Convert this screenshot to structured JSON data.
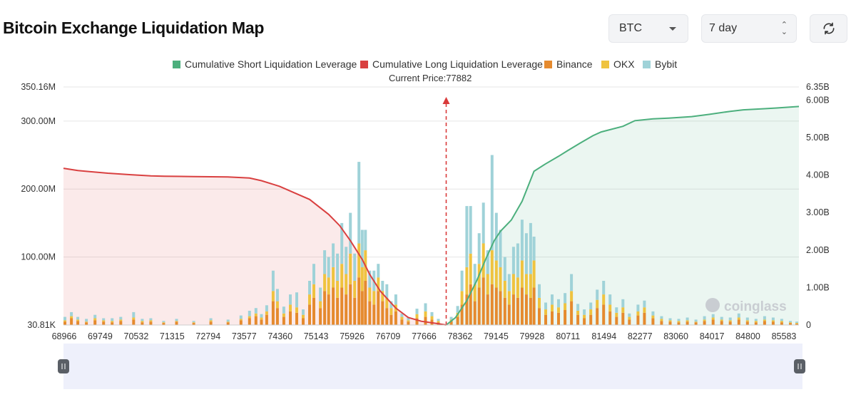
{
  "header": {
    "title": "Bitcoin Exchange Liquidation Map"
  },
  "controls": {
    "symbol": {
      "value": "BTC"
    },
    "range": {
      "value": "7 day"
    },
    "refresh_icon": "refresh-icon"
  },
  "legend": [
    {
      "label": "Cumulative Short Liquidation Leverage",
      "color": "#4caf7d"
    },
    {
      "label": "Cumulative Long Liquidation Leverage",
      "color": "#d94040"
    },
    {
      "label": "Binance",
      "color": "#e58a2e"
    },
    {
      "label": "OKX",
      "color": "#efc33f"
    },
    {
      "label": "Bybit",
      "color": "#9fd2d8"
    }
  ],
  "current_price_label": "Current Price:77882",
  "watermark": "coinglass",
  "chart_data": {
    "type": "bar",
    "x_tick_labels": [
      "68966",
      "69749",
      "70532",
      "71315",
      "72794",
      "73577",
      "74360",
      "75143",
      "75926",
      "76709",
      "77666",
      "78362",
      "79145",
      "79928",
      "80711",
      "81494",
      "82277",
      "83060",
      "84017",
      "84800",
      "85583"
    ],
    "x_range": [
      68966,
      86100
    ],
    "current_price": 77882,
    "left_axis_labels": [
      "350.16M",
      "300.00M",
      "200.00M",
      "100.00M",
      "30.81K"
    ],
    "right_axis_labels": [
      "6.35B",
      "6.00B",
      "5.00B",
      "4.00B",
      "3.00B",
      "2.00B",
      "1.00B",
      "0"
    ],
    "ylim_left": [
      0,
      350160000
    ],
    "ylim_right": [
      0,
      6350000000
    ],
    "series_lines": [
      {
        "name": "Cumulative Long Liquidation Leverage",
        "color": "#d94040",
        "points": [
          [
            68966,
            4180000000.0
          ],
          [
            69300,
            4120000000.0
          ],
          [
            70000,
            4050000000.0
          ],
          [
            70532,
            4010000000.0
          ],
          [
            71000,
            3980000000.0
          ],
          [
            71315,
            3970000000.0
          ],
          [
            72000,
            3960000000.0
          ],
          [
            72794,
            3950000000.0
          ],
          [
            73300,
            3920000000.0
          ],
          [
            73577,
            3850000000.0
          ],
          [
            74000,
            3700000000.0
          ],
          [
            74360,
            3520000000.0
          ],
          [
            74700,
            3350000000.0
          ],
          [
            75143,
            2950000000.0
          ],
          [
            75400,
            2650000000.0
          ],
          [
            75650,
            2250000000.0
          ],
          [
            75926,
            1750000000.0
          ],
          [
            76100,
            1350000000.0
          ],
          [
            76350,
            900000000.0
          ],
          [
            76709,
            450000000.0
          ],
          [
            77000,
            200000000.0
          ],
          [
            77300,
            100000000.0
          ],
          [
            77666,
            40000000.0
          ],
          [
            77882,
            0.0
          ]
        ]
      },
      {
        "name": "Cumulative Short Liquidation Leverage",
        "color": "#4caf7d",
        "points": [
          [
            77882,
            0.0
          ],
          [
            78100,
            200000000.0
          ],
          [
            78362,
            650000000.0
          ],
          [
            78600,
            1200000000.0
          ],
          [
            78800,
            1750000000.0
          ],
          [
            79000,
            2250000000.0
          ],
          [
            79145,
            2500000000.0
          ],
          [
            79400,
            2800000000.0
          ],
          [
            79650,
            3300000000.0
          ],
          [
            79928,
            4100000000.0
          ],
          [
            80200,
            4300000000.0
          ],
          [
            80500,
            4500000000.0
          ],
          [
            80711,
            4650000000.0
          ],
          [
            81000,
            4850000000.0
          ],
          [
            81300,
            5050000000.0
          ],
          [
            81494,
            5150000000.0
          ],
          [
            82000,
            5300000000.0
          ],
          [
            82277,
            5450000000.0
          ],
          [
            82700,
            5500000000.0
          ],
          [
            83060,
            5520000000.0
          ],
          [
            83600,
            5560000000.0
          ],
          [
            84017,
            5620000000.0
          ],
          [
            84500,
            5700000000.0
          ],
          [
            84800,
            5740000000.0
          ],
          [
            85300,
            5770000000.0
          ],
          [
            85583,
            5790000000.0
          ],
          [
            86100,
            5830000000.0
          ]
        ]
      }
    ],
    "bar_series": [
      {
        "name": "Binance",
        "color": "#e58a2e"
      },
      {
        "name": "OKX",
        "color": "#efc33f"
      },
      {
        "name": "Bybit",
        "color": "#9fd2d8"
      }
    ],
    "bars": [
      [
        69000,
        5000000.0,
        2000000.0,
        5000000.0
      ],
      [
        69150,
        10000000.0,
        3000000.0,
        6000000.0
      ],
      [
        69300,
        6000000.0,
        2000000.0,
        4000000.0
      ],
      [
        69500,
        4000000.0,
        1000000.0,
        4000000.0
      ],
      [
        69700,
        7000000.0,
        3000000.0,
        5000000.0
      ],
      [
        69900,
        5000000.0,
        2000000.0,
        3000000.0
      ],
      [
        70100,
        4000000.0,
        2000000.0,
        4000000.0
      ],
      [
        70300,
        6000000.0,
        2000000.0,
        4000000.0
      ],
      [
        70600,
        8000000.0,
        3000000.0,
        8000000.0
      ],
      [
        70800,
        4000000.0,
        2000000.0,
        3000000.0
      ],
      [
        71000,
        5000000.0,
        2000000.0,
        3000000.0
      ],
      [
        71300,
        3000000.0,
        1000000.0,
        2000000.0
      ],
      [
        71600,
        5000000.0,
        1000000.0,
        3000000.0
      ],
      [
        72000,
        3000000.0,
        1000000.0,
        2000000.0
      ],
      [
        72400,
        5000000.0,
        2000000.0,
        3000000.0
      ],
      [
        72800,
        4000000.0,
        1000000.0,
        3000000.0
      ],
      [
        73100,
        7000000.0,
        2000000.0,
        5000000.0
      ],
      [
        73300,
        10000000.0,
        3000000.0,
        8000000.0
      ],
      [
        73450,
        13000000.0,
        4000000.0,
        8000000.0
      ],
      [
        73577,
        8000000.0,
        3000000.0,
        5000000.0
      ],
      [
        73700,
        15000000.0,
        5000000.0,
        9000000.0
      ],
      [
        73850,
        35000000.0,
        15000000.0,
        30000000.0
      ],
      [
        73950,
        25000000.0,
        10000000.0,
        18000000.0
      ],
      [
        74100,
        12000000.0,
        5000000.0,
        10000000.0
      ],
      [
        74250,
        20000000.0,
        10000000.0,
        15000000.0
      ],
      [
        74400,
        18000000.0,
        8000000.0,
        22000000.0
      ],
      [
        74550,
        10000000.0,
        5000000.0,
        8000000.0
      ],
      [
        74700,
        30000000.0,
        15000000.0,
        20000000.0
      ],
      [
        74800,
        40000000.0,
        20000000.0,
        30000000.0
      ],
      [
        74950,
        25000000.0,
        10000000.0,
        20000000.0
      ],
      [
        75050,
        50000000.0,
        25000000.0,
        35000000.0
      ],
      [
        75143,
        45000000.0,
        25000000.0,
        30000000.0
      ],
      [
        75250,
        55000000.0,
        30000000.0,
        35000000.0
      ],
      [
        75350,
        40000000.0,
        25000000.0,
        40000000.0
      ],
      [
        75450,
        55000000.0,
        35000000.0,
        60000000.0
      ],
      [
        75550,
        45000000.0,
        30000000.0,
        40000000.0
      ],
      [
        75650,
        60000000.0,
        45000000.0,
        60000000.0
      ],
      [
        75750,
        40000000.0,
        25000000.0,
        40000000.0
      ],
      [
        75850,
        70000000.0,
        50000000.0,
        120000000.0
      ],
      [
        75926,
        50000000.0,
        35000000.0,
        55000000.0
      ],
      [
        76000,
        65000000.0,
        45000000.0,
        30000000.0
      ],
      [
        76100,
        35000000.0,
        20000000.0,
        25000000.0
      ],
      [
        76200,
        30000000.0,
        20000000.0,
        30000000.0
      ],
      [
        76300,
        50000000.0,
        20000000.0,
        20000000.0
      ],
      [
        76400,
        35000000.0,
        15000000.0,
        15000000.0
      ],
      [
        76500,
        25000000.0,
        15000000.0,
        20000000.0
      ],
      [
        76600,
        15000000.0,
        10000000.0,
        10000000.0
      ],
      [
        76709,
        20000000.0,
        10000000.0,
        15000000.0
      ],
      [
        76850,
        8000000.0,
        4000000.0,
        5000000.0
      ],
      [
        77000,
        5000000.0,
        2000000.0,
        4000000.0
      ],
      [
        77200,
        10000000.0,
        6000000.0,
        8000000.0
      ],
      [
        77400,
        12000000.0,
        8000000.0,
        12000000.0
      ],
      [
        77550,
        8000000.0,
        5000000.0,
        6000000.0
      ],
      [
        77700,
        4000000.0,
        2000000.0,
        3000000.0
      ],
      [
        78000,
        6000000.0,
        2000000.0,
        4000000.0
      ],
      [
        78150,
        12000000.0,
        6000000.0,
        10000000.0
      ],
      [
        78250,
        30000000.0,
        20000000.0,
        30000000.0
      ],
      [
        78362,
        45000000.0,
        40000000.0,
        90000000.0
      ],
      [
        78450,
        60000000.0,
        45000000.0,
        70000000.0
      ],
      [
        78550,
        35000000.0,
        25000000.0,
        30000000.0
      ],
      [
        78650,
        55000000.0,
        35000000.0,
        45000000.0
      ],
      [
        78750,
        70000000.0,
        50000000.0,
        60000000.0
      ],
      [
        78850,
        45000000.0,
        30000000.0,
        35000000.0
      ],
      [
        78950,
        60000000.0,
        50000000.0,
        140000000.0
      ],
      [
        79050,
        55000000.0,
        40000000.0,
        70000000.0
      ],
      [
        79145,
        50000000.0,
        35000000.0,
        55000000.0
      ],
      [
        79250,
        40000000.0,
        25000000.0,
        35000000.0
      ],
      [
        79350,
        30000000.0,
        20000000.0,
        25000000.0
      ],
      [
        79450,
        45000000.0,
        30000000.0,
        40000000.0
      ],
      [
        79550,
        40000000.0,
        30000000.0,
        50000000.0
      ],
      [
        79650,
        55000000.0,
        40000000.0,
        60000000.0
      ],
      [
        79750,
        45000000.0,
        30000000.0,
        60000000.0
      ],
      [
        79850,
        40000000.0,
        35000000.0,
        75000000.0
      ],
      [
        79928,
        55000000.0,
        40000000.0,
        35000000.0
      ],
      [
        80050,
        25000000.0,
        15000000.0,
        20000000.0
      ],
      [
        80200,
        15000000.0,
        8000000.0,
        10000000.0
      ],
      [
        80350,
        20000000.0,
        10000000.0,
        15000000.0
      ],
      [
        80500,
        18000000.0,
        8000000.0,
        12000000.0
      ],
      [
        80650,
        22000000.0,
        10000000.0,
        15000000.0
      ],
      [
        80800,
        35000000.0,
        15000000.0,
        25000000.0
      ],
      [
        80950,
        15000000.0,
        6000000.0,
        10000000.0
      ],
      [
        81100,
        10000000.0,
        5000000.0,
        8000000.0
      ],
      [
        81250,
        15000000.0,
        8000000.0,
        10000000.0
      ],
      [
        81400,
        25000000.0,
        12000000.0,
        15000000.0
      ],
      [
        81550,
        30000000.0,
        15000000.0,
        20000000.0
      ],
      [
        81700,
        20000000.0,
        10000000.0,
        15000000.0
      ],
      [
        81850,
        12000000.0,
        6000000.0,
        8000000.0
      ],
      [
        82000,
        18000000.0,
        8000000.0,
        12000000.0
      ],
      [
        82150,
        8000000.0,
        4000000.0,
        5000000.0
      ],
      [
        82350,
        14000000.0,
        6000000.0,
        10000000.0
      ],
      [
        82500,
        18000000.0,
        8000000.0,
        10000000.0
      ],
      [
        82700,
        10000000.0,
        4000000.0,
        6000000.0
      ],
      [
        82900,
        6000000.0,
        3000000.0,
        4000000.0
      ],
      [
        83100,
        5000000.0,
        2000000.0,
        3000000.0
      ],
      [
        83300,
        4000000.0,
        2000000.0,
        3000000.0
      ],
      [
        83500,
        5000000.0,
        2000000.0,
        4000000.0
      ],
      [
        83700,
        4000000.0,
        1000000.0,
        3000000.0
      ],
      [
        83900,
        6000000.0,
        2000000.0,
        5000000.0
      ],
      [
        84100,
        8000000.0,
        3000000.0,
        5000000.0
      ],
      [
        84300,
        6000000.0,
        2000000.0,
        4000000.0
      ],
      [
        84500,
        5000000.0,
        2000000.0,
        4000000.0
      ],
      [
        84700,
        8000000.0,
        3000000.0,
        6000000.0
      ],
      [
        84900,
        5000000.0,
        2000000.0,
        4000000.0
      ],
      [
        85100,
        4000000.0,
        2000000.0,
        3000000.0
      ],
      [
        85300,
        6000000.0,
        2000000.0,
        5000000.0
      ],
      [
        85500,
        5000000.0,
        2000000.0,
        4000000.0
      ],
      [
        85700,
        4000000.0,
        2000000.0,
        3000000.0
      ],
      [
        85900,
        3000000.0,
        1000000.0,
        2000000.0
      ],
      [
        86050,
        2000000.0,
        1000000.0,
        2000000.0
      ]
    ]
  }
}
